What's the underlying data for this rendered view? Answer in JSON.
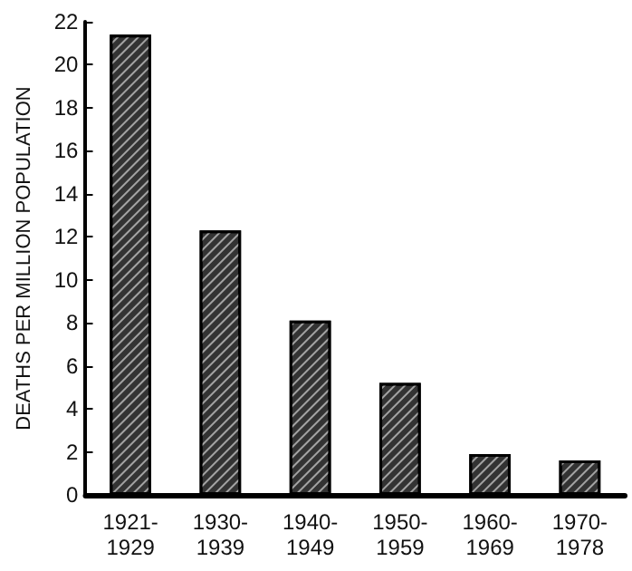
{
  "chart_data": {
    "type": "bar",
    "ylabel": "DEATHS PER MILLION POPULATION",
    "categories": [
      "1921-\n1929",
      "1930-\n1939",
      "1940-\n1949",
      "1950-\n1959",
      "1960-\n1969",
      "1970-\n1978"
    ],
    "values": [
      21.4,
      12.3,
      8.1,
      5.2,
      1.9,
      1.6
    ],
    "color": "#333333",
    "ylim": [
      0,
      22
    ],
    "yticks": [
      0,
      2,
      4,
      6,
      8,
      10,
      12,
      14,
      16,
      18,
      20,
      22
    ],
    "grid": false
  }
}
